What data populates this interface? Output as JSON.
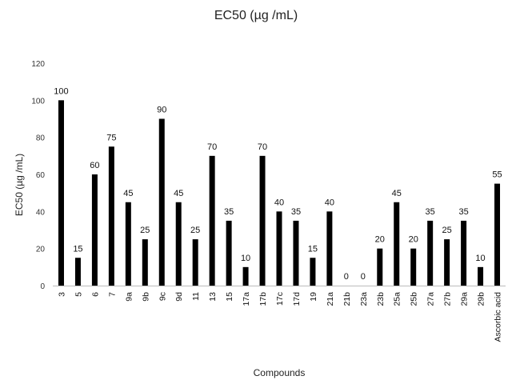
{
  "chart_data": {
    "type": "bar",
    "title": "EC50 (µg /mL)",
    "xlabel": "Compounds",
    "ylabel": "EC50 (µg /mL)",
    "ylim": [
      0,
      120
    ],
    "yticks": [
      0,
      20,
      40,
      60,
      80,
      100,
      120
    ],
    "grid": false,
    "legend": "none",
    "bar_color": "#000000",
    "categories": [
      "3",
      "5",
      "6",
      "7",
      "9a",
      "9b",
      "9c",
      "9d",
      "11",
      "13",
      "15",
      "17a",
      "17b",
      "17c",
      "17d",
      "19",
      "21a",
      "21b",
      "23a",
      "23b",
      "25a",
      "25b",
      "27a",
      "27b",
      "29a",
      "29b",
      "Ascorbic acid"
    ],
    "values": [
      100,
      15,
      60,
      75,
      45,
      25,
      90,
      45,
      25,
      70,
      35,
      10,
      70,
      40,
      35,
      15,
      40,
      0,
      0,
      20,
      45,
      20,
      35,
      25,
      35,
      10,
      55
    ],
    "data_labels": [
      "100",
      "15",
      "60",
      "75",
      "45",
      "25",
      "90",
      "45",
      "25",
      "70",
      "35",
      "10",
      "70",
      "40",
      "35",
      "15",
      "40",
      "0",
      "0",
      "20",
      "45",
      "20",
      "35",
      "25",
      "35",
      "10",
      "55"
    ]
  }
}
